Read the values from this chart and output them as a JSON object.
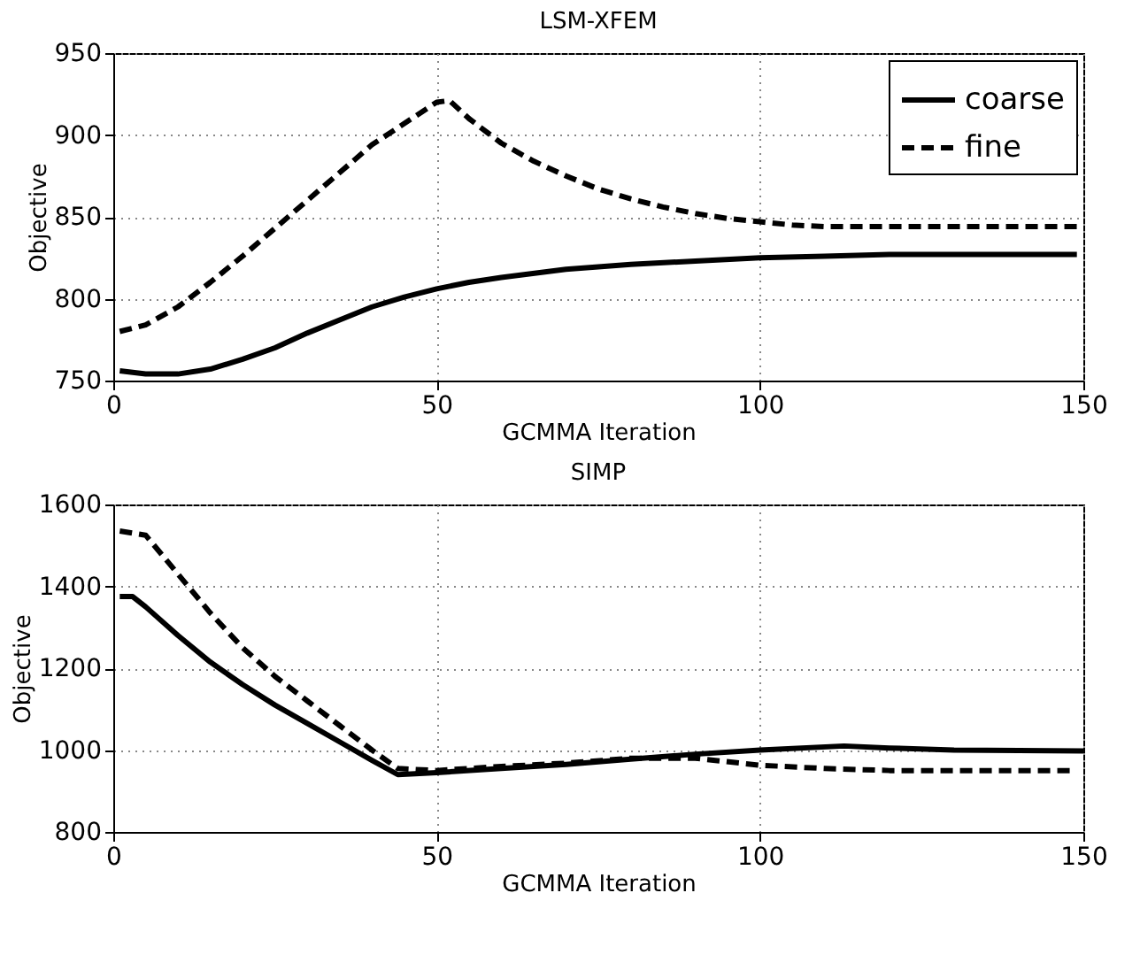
{
  "chart_data": [
    {
      "type": "line",
      "title": "LSM-XFEM",
      "xlabel": "GCMMA Iteration",
      "ylabel": "Objective",
      "xlim": [
        0,
        150
      ],
      "ylim": [
        750,
        950
      ],
      "xticks": [
        0,
        50,
        100,
        150
      ],
      "yticks": [
        750,
        800,
        850,
        900,
        950
      ],
      "grid": true,
      "legend": "top right",
      "series": [
        {
          "name": "coarse",
          "color": "#000000",
          "line_style": "solid",
          "x": [
            1,
            5,
            10,
            15,
            20,
            25,
            30,
            35,
            40,
            45,
            50,
            55,
            60,
            70,
            80,
            90,
            100,
            110,
            120,
            130,
            149
          ],
          "values": [
            756,
            754,
            754,
            757,
            763,
            770,
            779,
            787,
            795,
            801,
            806,
            810,
            813,
            818,
            821,
            823,
            825,
            826,
            827,
            827,
            827
          ]
        },
        {
          "name": "fine",
          "color": "#000000",
          "line_style": "dashed",
          "x": [
            1,
            5,
            10,
            15,
            20,
            25,
            30,
            35,
            40,
            45,
            50,
            52,
            55,
            60,
            65,
            70,
            75,
            80,
            85,
            90,
            95,
            100,
            105,
            110,
            149
          ],
          "values": [
            780,
            784,
            795,
            810,
            826,
            843,
            860,
            877,
            894,
            907,
            920,
            921,
            910,
            895,
            884,
            875,
            867,
            861,
            856,
            852,
            849,
            847,
            845,
            844,
            844
          ]
        }
      ]
    },
    {
      "type": "line",
      "title": "SIMP",
      "xlabel": "GCMMA Iteration",
      "ylabel": "Objective",
      "xlim": [
        0,
        150
      ],
      "ylim": [
        800,
        1600
      ],
      "xticks": [
        0,
        50,
        100,
        150
      ],
      "yticks": [
        800,
        1000,
        1200,
        1400,
        1600
      ],
      "grid": true,
      "legend": "top right",
      "series": [
        {
          "name": "coarse",
          "color": "#000000",
          "line_style": "solid",
          "x": [
            1,
            3,
            5,
            10,
            15,
            20,
            25,
            30,
            35,
            40,
            44,
            50,
            60,
            70,
            80,
            90,
            100,
            113,
            120,
            130,
            150
          ],
          "values": [
            1375,
            1375,
            1350,
            1280,
            1215,
            1160,
            1110,
            1065,
            1020,
            975,
            940,
            945,
            955,
            965,
            978,
            990,
            1000,
            1010,
            1005,
            1000,
            998
          ]
        },
        {
          "name": "fine",
          "color": "#000000",
          "line_style": "dashed",
          "x": [
            1,
            3,
            5,
            10,
            15,
            20,
            25,
            30,
            35,
            40,
            44,
            50,
            60,
            70,
            80,
            90,
            100,
            110,
            120,
            148
          ],
          "values": [
            1535,
            1530,
            1525,
            1430,
            1335,
            1250,
            1180,
            1120,
            1060,
            1000,
            955,
            950,
            960,
            968,
            980,
            980,
            963,
            955,
            950,
            950
          ]
        }
      ]
    }
  ]
}
